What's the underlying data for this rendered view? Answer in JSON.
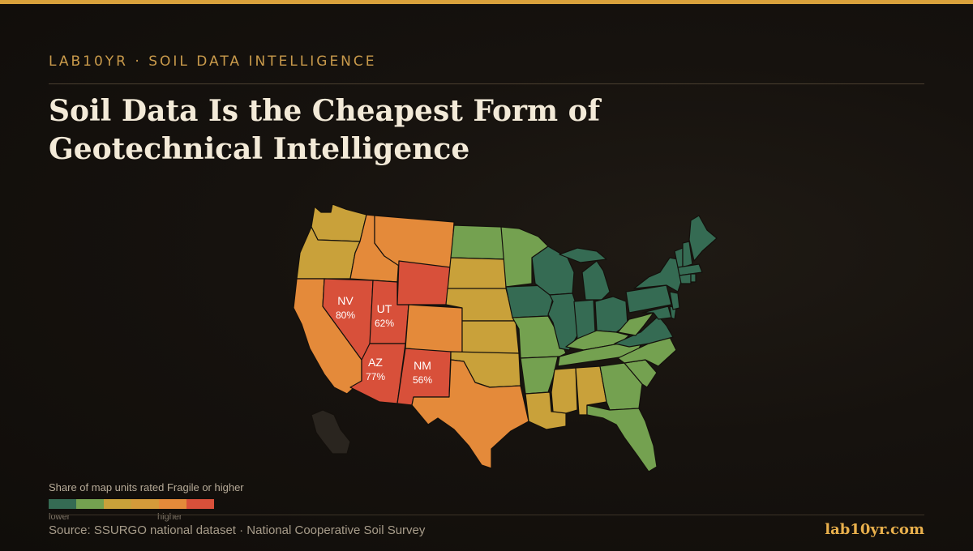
{
  "header": {
    "eyebrow": "LAB10YR · SOIL DATA INTELLIGENCE",
    "title_line1": "Soil Data Is the Cheapest Form of",
    "title_line2": "Geotechnical Intelligence"
  },
  "map": {
    "subject": "contiguous United States",
    "labeled_states": [
      {
        "abbr": "NV",
        "value": "80%"
      },
      {
        "abbr": "UT",
        "value": "62%"
      },
      {
        "abbr": "AZ",
        "value": "77%"
      },
      {
        "abbr": "NM",
        "value": "56%"
      }
    ],
    "color_classes": {
      "class1": "#356b53",
      "class2": "#74a150",
      "class3": "#c9a13a",
      "class4": "#e48a3a",
      "class5": "#d8503a",
      "no_data": "#2a251f"
    },
    "state_classes": {
      "WA": 3,
      "OR": 3,
      "CA": 4,
      "ID": 4,
      "MT": 4,
      "WY": 5,
      "NV": 5,
      "UT": 5,
      "AZ": 5,
      "NM": 5,
      "CO": 4,
      "ND": 2,
      "SD": 3,
      "NE": 3,
      "KS": 3,
      "OK": 3,
      "TX": 4,
      "MN": 2,
      "IA": 1,
      "MO": 2,
      "AR": 2,
      "LA": 3,
      "WI": 1,
      "IL": 1,
      "MI": 1,
      "IN": 1,
      "OH": 1,
      "KY": 2,
      "TN": 2,
      "MS": 3,
      "AL": 3,
      "GA": 2,
      "FL": 2,
      "SC": 2,
      "NC": 2,
      "VA": 1,
      "WV": 2,
      "PA": 1,
      "NY": 1,
      "NJ": 1,
      "MD": 1,
      "DE": 1,
      "ME": 1,
      "NH": 1,
      "VT": 1,
      "MA": 1,
      "CT": 1,
      "RI": 1
    }
  },
  "legend": {
    "title": "Share of map units rated Fragile or higher",
    "low_label": "lower",
    "high_label": "higher",
    "colors": [
      "#356b53",
      "#74a150",
      "#c9a13a",
      "#d49a3a",
      "#e48a3a",
      "#d8503a"
    ]
  },
  "footer": {
    "source": "Source: SSURGO national dataset · National Cooperative Soil Survey",
    "site": "lab10yr.com"
  }
}
